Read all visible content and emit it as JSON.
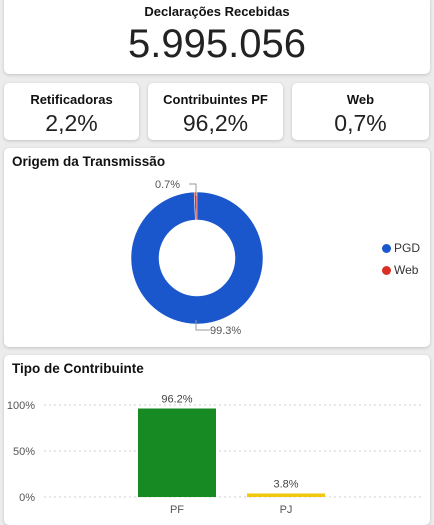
{
  "kpi_main": {
    "title": "Declarações Recebidas",
    "value": "5.995.056"
  },
  "kpis": [
    {
      "title": "Retificadoras",
      "value": "2,2%"
    },
    {
      "title": "Contribuintes PF",
      "value": "96,2%"
    },
    {
      "title": "Web",
      "value": "0,7%"
    }
  ],
  "donut": {
    "title": "Origem da Transmissão",
    "labels": {
      "pgd_pct": "99.3%",
      "web_pct": "0.7%"
    },
    "legend": [
      {
        "name": "PGD",
        "color": "#1a56cc"
      },
      {
        "name": "Web",
        "color": "#d93025"
      }
    ]
  },
  "bar": {
    "title": "Tipo de Contribuinte",
    "ticks": [
      "100%",
      "50%",
      "0%"
    ]
  },
  "chart_data": [
    {
      "type": "pie",
      "title": "Origem da Transmissão",
      "labels": [
        "PGD",
        "Web"
      ],
      "values": [
        99.3,
        0.7
      ],
      "colors": [
        "#1a56cc",
        "#d93025"
      ],
      "legend": "right"
    },
    {
      "type": "bar",
      "title": "Tipo de Contribuinte",
      "categories": [
        "PF",
        "PJ"
      ],
      "values": [
        96.2,
        3.8
      ],
      "value_labels": [
        "96.2%",
        "3.8%"
      ],
      "colors": [
        "#178a24",
        "#f2c80f"
      ],
      "ylim": [
        0,
        100
      ],
      "grid": true
    }
  ]
}
